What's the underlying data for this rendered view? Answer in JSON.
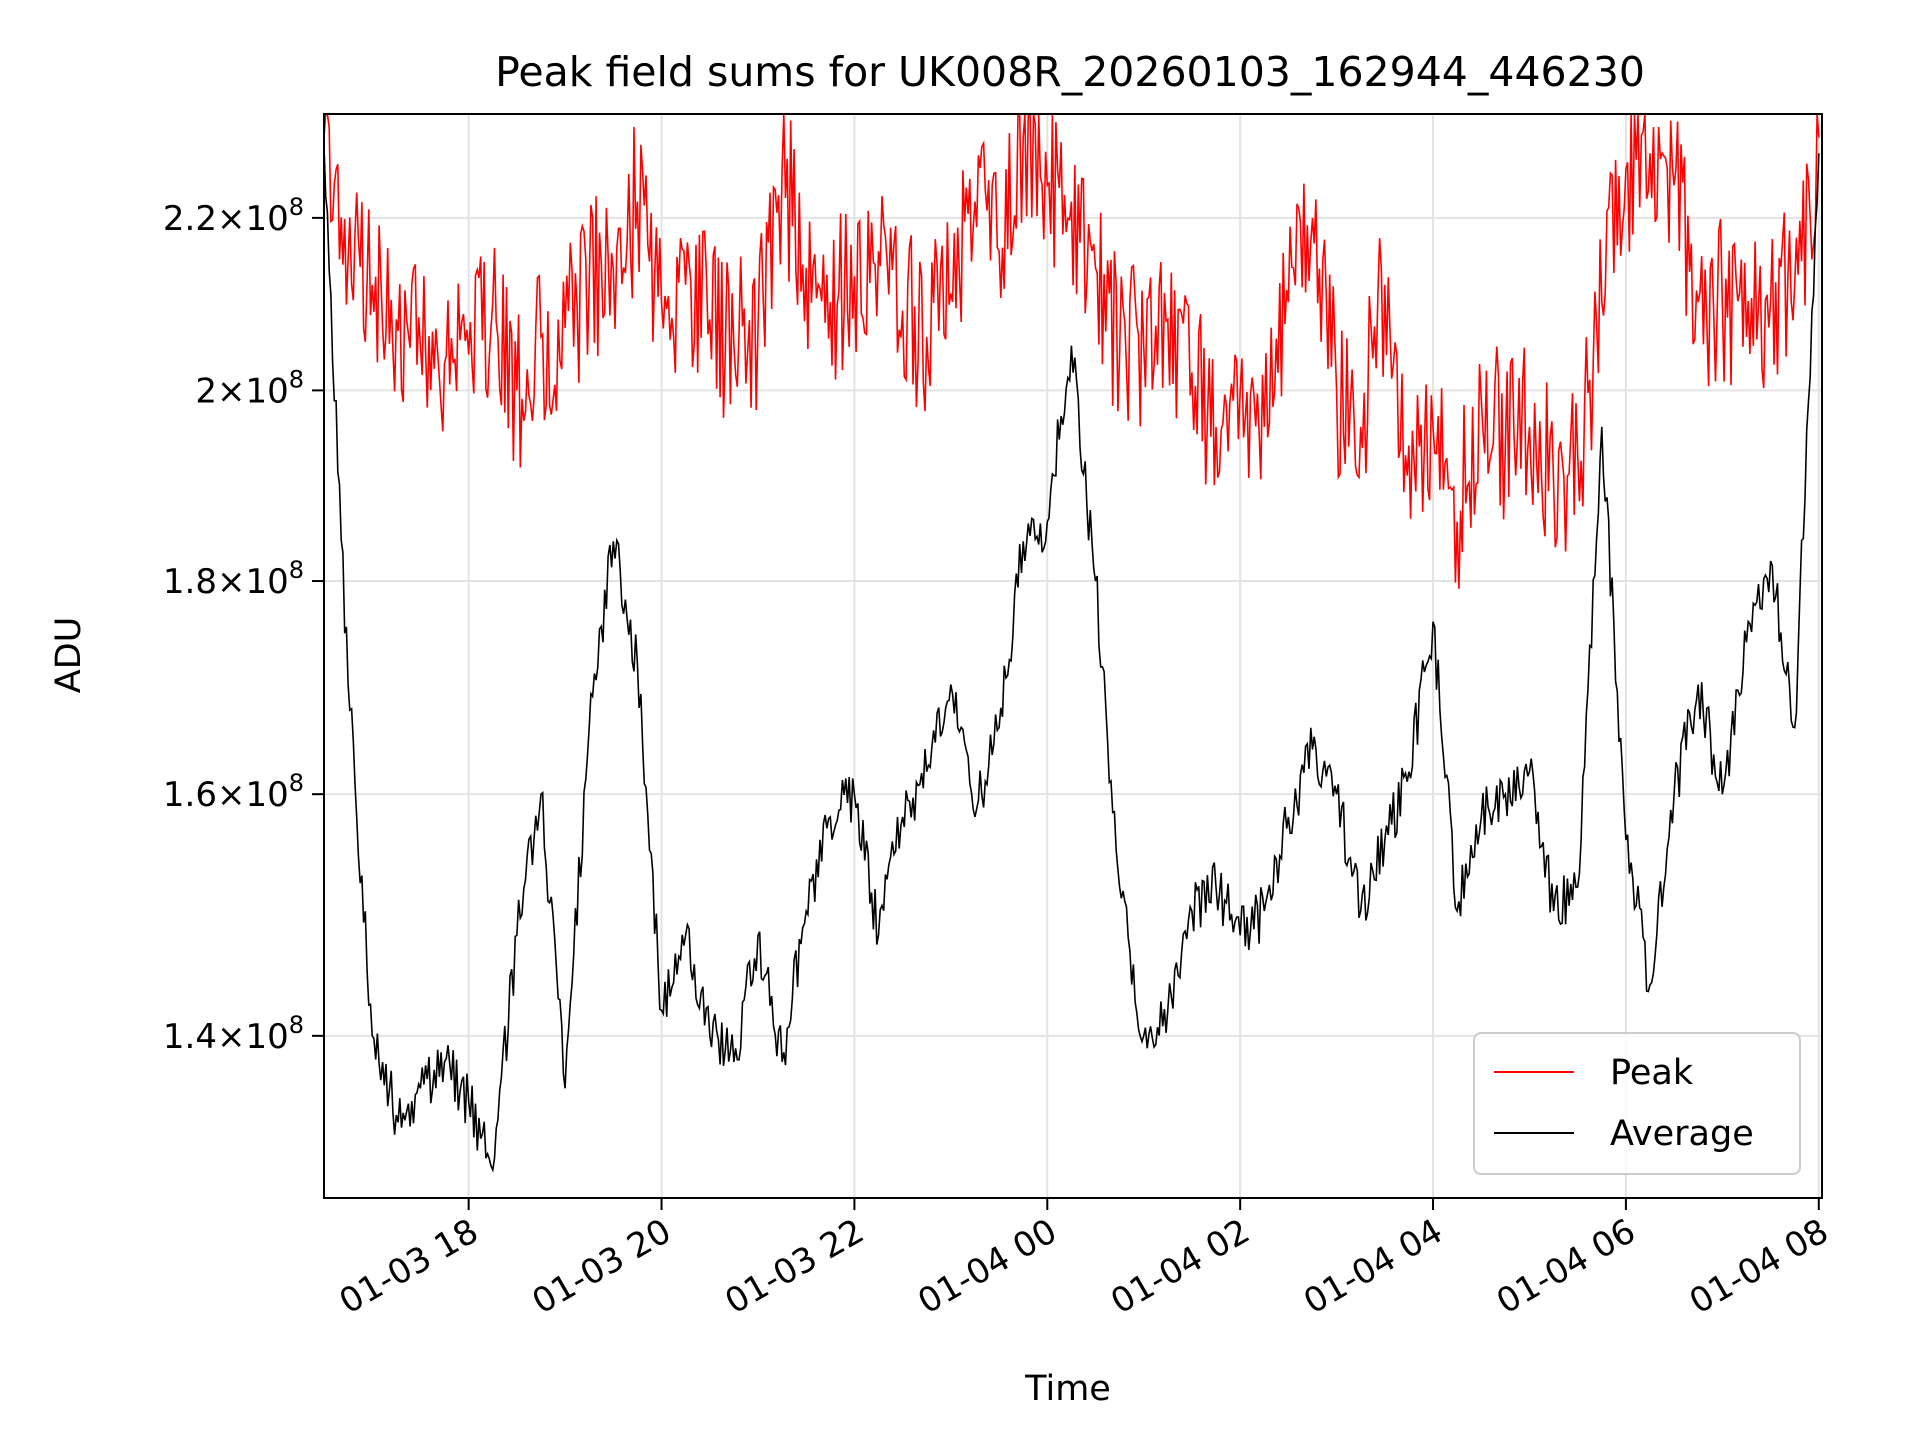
{
  "chart_data": {
    "type": "line",
    "title": "Peak field sums for UK008R_20260103_162944_446230",
    "xlabel": "Time",
    "ylabel": "ADU",
    "y_scale": "log",
    "grid": true,
    "legend_position": "lower-right",
    "x_range": [
      "2026-01-03 16:30",
      "2026-01-04 08:02"
    ],
    "ylim": [
      128000000,
      233000000
    ],
    "x_ticks": [
      {
        "value": "2026-01-03 18:00",
        "label": "01-03 18"
      },
      {
        "value": "2026-01-03 20:00",
        "label": "01-03 20"
      },
      {
        "value": "2026-01-03 22:00",
        "label": "01-03 22"
      },
      {
        "value": "2026-01-04 00:00",
        "label": "01-04 00"
      },
      {
        "value": "2026-01-04 02:00",
        "label": "01-04 02"
      },
      {
        "value": "2026-01-04 04:00",
        "label": "01-04 04"
      },
      {
        "value": "2026-01-04 06:00",
        "label": "01-04 06"
      },
      {
        "value": "2026-01-04 08:00",
        "label": "01-04 08"
      }
    ],
    "y_ticks": [
      {
        "value": 140000000,
        "mantissa": "1.4",
        "exponent": "8"
      },
      {
        "value": 160000000,
        "mantissa": "1.6",
        "exponent": "8"
      },
      {
        "value": 180000000,
        "mantissa": "1.8",
        "exponent": "8"
      },
      {
        "value": 200000000,
        "mantissa": "2",
        "exponent": "8"
      },
      {
        "value": 220000000,
        "mantissa": "2.2",
        "exponent": "8"
      }
    ],
    "series": [
      {
        "name": "Peak",
        "color": "#ff0000",
        "x": [
          "2026-01-03 16:30",
          "2026-01-03 16:45",
          "2026-01-03 17:00",
          "2026-01-03 17:15",
          "2026-01-03 17:30",
          "2026-01-03 17:45",
          "2026-01-03 18:00",
          "2026-01-03 18:15",
          "2026-01-03 18:30",
          "2026-01-03 18:45",
          "2026-01-03 19:00",
          "2026-01-03 19:15",
          "2026-01-03 19:30",
          "2026-01-03 19:45",
          "2026-01-03 20:00",
          "2026-01-03 20:15",
          "2026-01-03 20:30",
          "2026-01-03 20:45",
          "2026-01-03 21:00",
          "2026-01-03 21:15",
          "2026-01-03 21:30",
          "2026-01-03 21:45",
          "2026-01-03 22:00",
          "2026-01-03 22:15",
          "2026-01-03 22:30",
          "2026-01-03 22:45",
          "2026-01-03 23:00",
          "2026-01-03 23:15",
          "2026-01-03 23:30",
          "2026-01-03 23:45",
          "2026-01-04 00:00",
          "2026-01-04 00:15",
          "2026-01-04 00:30",
          "2026-01-04 00:45",
          "2026-01-04 01:00",
          "2026-01-04 01:15",
          "2026-01-04 01:30",
          "2026-01-04 01:45",
          "2026-01-04 02:00",
          "2026-01-04 02:15",
          "2026-01-04 02:30",
          "2026-01-04 02:45",
          "2026-01-04 03:00",
          "2026-01-04 03:15",
          "2026-01-04 03:30",
          "2026-01-04 03:45",
          "2026-01-04 04:00",
          "2026-01-04 04:15",
          "2026-01-04 04:30",
          "2026-01-04 04:45",
          "2026-01-04 05:00",
          "2026-01-04 05:15",
          "2026-01-04 05:30",
          "2026-01-04 05:45",
          "2026-01-04 06:00",
          "2026-01-04 06:15",
          "2026-01-04 06:30",
          "2026-01-04 06:45",
          "2026-01-04 07:00",
          "2026-01-04 07:15",
          "2026-01-04 07:30",
          "2026-01-04 07:45",
          "2026-01-04 08:00"
        ],
        "y": [
          230000000,
          215000000,
          212000000,
          208000000,
          205000000,
          203000000,
          204000000,
          210000000,
          200000000,
          206000000,
          207000000,
          212000000,
          214000000,
          222000000,
          210000000,
          212000000,
          208000000,
          205000000,
          207000000,
          226000000,
          214000000,
          210000000,
          213000000,
          216000000,
          209000000,
          206000000,
          211000000,
          222000000,
          216000000,
          230000000,
          224000000,
          222000000,
          214000000,
          204000000,
          205000000,
          208000000,
          202000000,
          196000000,
          200000000,
          196000000,
          210000000,
          220000000,
          200000000,
          196000000,
          212000000,
          194000000,
          196000000,
          186000000,
          199000000,
          194000000,
          196000000,
          190000000,
          193000000,
          210000000,
          226000000,
          228000000,
          224000000,
          210000000,
          210000000,
          206000000,
          210000000,
          212000000,
          230000000
        ]
      },
      {
        "name": "Average",
        "color": "#000000",
        "x": [
          "2026-01-03 16:30",
          "2026-01-03 16:45",
          "2026-01-03 17:00",
          "2026-01-03 17:15",
          "2026-01-03 17:30",
          "2026-01-03 17:45",
          "2026-01-03 18:00",
          "2026-01-03 18:15",
          "2026-01-03 18:30",
          "2026-01-03 18:45",
          "2026-01-03 19:00",
          "2026-01-03 19:15",
          "2026-01-03 19:30",
          "2026-01-03 19:45",
          "2026-01-03 20:00",
          "2026-01-03 20:15",
          "2026-01-03 20:30",
          "2026-01-03 20:45",
          "2026-01-03 21:00",
          "2026-01-03 21:15",
          "2026-01-03 21:30",
          "2026-01-03 21:45",
          "2026-01-03 22:00",
          "2026-01-03 22:15",
          "2026-01-03 22:30",
          "2026-01-03 22:45",
          "2026-01-03 23:00",
          "2026-01-03 23:15",
          "2026-01-03 23:30",
          "2026-01-03 23:45",
          "2026-01-04 00:00",
          "2026-01-04 00:15",
          "2026-01-04 00:30",
          "2026-01-04 00:45",
          "2026-01-04 01:00",
          "2026-01-04 01:15",
          "2026-01-04 01:30",
          "2026-01-04 01:45",
          "2026-01-04 02:00",
          "2026-01-04 02:15",
          "2026-01-04 02:30",
          "2026-01-04 02:45",
          "2026-01-04 03:00",
          "2026-01-04 03:15",
          "2026-01-04 03:30",
          "2026-01-04 03:45",
          "2026-01-04 04:00",
          "2026-01-04 04:15",
          "2026-01-04 04:30",
          "2026-01-04 04:45",
          "2026-01-04 05:00",
          "2026-01-04 05:15",
          "2026-01-04 05:30",
          "2026-01-04 05:45",
          "2026-01-04 06:00",
          "2026-01-04 06:15",
          "2026-01-04 06:30",
          "2026-01-04 06:45",
          "2026-01-04 07:00",
          "2026-01-04 07:15",
          "2026-01-04 07:30",
          "2026-01-04 07:45",
          "2026-01-04 08:00"
        ],
        "y": [
          229000000,
          170000000,
          140000000,
          134000000,
          136000000,
          138000000,
          135000000,
          130000000,
          148000000,
          160000000,
          136000000,
          166000000,
          184000000,
          172000000,
          142000000,
          148000000,
          140000000,
          138000000,
          148000000,
          138000000,
          150000000,
          158000000,
          160000000,
          148000000,
          158000000,
          162000000,
          170000000,
          158000000,
          166000000,
          184000000,
          186000000,
          205000000,
          180000000,
          152000000,
          140000000,
          142000000,
          150000000,
          152000000,
          148000000,
          150000000,
          158000000,
          164000000,
          160000000,
          150000000,
          156000000,
          162000000,
          176000000,
          150000000,
          158000000,
          160000000,
          162000000,
          150000000,
          152000000,
          196000000,
          156000000,
          144000000,
          160000000,
          170000000,
          160000000,
          174000000,
          182000000,
          166000000,
          228000000
        ]
      }
    ]
  }
}
